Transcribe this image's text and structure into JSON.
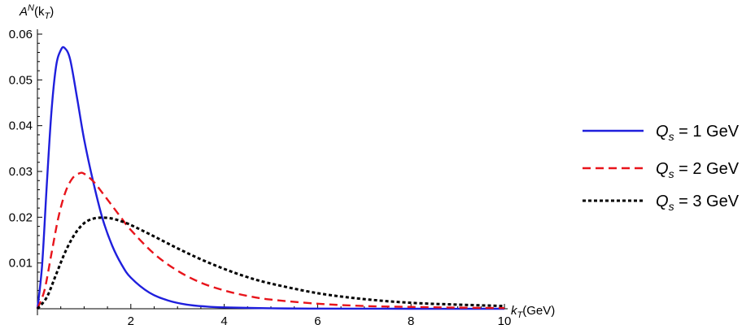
{
  "chart_data": {
    "type": "line",
    "xlabel": {
      "main": "k",
      "sub": "T",
      "suffix": "(GeV)"
    },
    "ylabel": {
      "main": "A",
      "sup": "N",
      "open": "(k",
      "sub": "T",
      "close": ")"
    },
    "xlim": [
      0,
      10
    ],
    "ylim": [
      0,
      0.06
    ],
    "xticks": [
      2,
      4,
      6,
      8,
      10
    ],
    "yticks": [
      0.01,
      0.02,
      0.03,
      0.04,
      0.05,
      0.06
    ],
    "ytick_labels": [
      "0.01",
      "0.02",
      "0.03",
      "0.04",
      "0.05",
      "0.06"
    ],
    "grid": false,
    "legend_position": "right",
    "series": [
      {
        "name": "Q_s = 1 GeV",
        "legend": {
          "main": "Q",
          "sub": "s",
          "rest": " = 1 GeV"
        },
        "color": "#1f1fdd",
        "style": "solid",
        "x": [
          0,
          0.1,
          0.2,
          0.3,
          0.4,
          0.5,
          0.58,
          0.7,
          0.85,
          1.0,
          1.2,
          1.4,
          1.6,
          1.8,
          2.0,
          2.4,
          2.8,
          3.2,
          3.6,
          4.0,
          5.0,
          6.0,
          8.0,
          10.0
        ],
        "y": [
          0,
          0.0095,
          0.027,
          0.043,
          0.053,
          0.0565,
          0.057,
          0.0545,
          0.046,
          0.037,
          0.0275,
          0.0195,
          0.0138,
          0.0097,
          0.0068,
          0.0035,
          0.0018,
          0.0009,
          0.0005,
          0.0003,
          0.0001,
          3e-05,
          0.0,
          0.0
        ]
      },
      {
        "name": "Q_s = 2 GeV",
        "legend": {
          "main": "Q",
          "sub": "s",
          "rest": " = 2 GeV"
        },
        "color": "#e8141b",
        "style": "dashed",
        "x": [
          0,
          0.15,
          0.3,
          0.45,
          0.6,
          0.75,
          0.9,
          1.0,
          1.2,
          1.4,
          1.6,
          1.8,
          2.0,
          2.5,
          3.0,
          3.5,
          4.0,
          4.5,
          5.0,
          6.0,
          7.0,
          8.0,
          9.0,
          10.0
        ],
        "y": [
          0,
          0.004,
          0.012,
          0.02,
          0.0255,
          0.0285,
          0.0296,
          0.0295,
          0.0278,
          0.0252,
          0.0225,
          0.0198,
          0.0172,
          0.012,
          0.0083,
          0.0057,
          0.004,
          0.0028,
          0.002,
          0.0011,
          0.0006,
          0.0004,
          0.00025,
          0.00015
        ]
      },
      {
        "name": "Q_s = 3 GeV",
        "legend": {
          "main": "Q",
          "sub": "s",
          "rest": " = 3 GeV"
        },
        "color": "#000000",
        "style": "dotted",
        "x": [
          0,
          0.2,
          0.4,
          0.6,
          0.8,
          1.0,
          1.2,
          1.4,
          1.6,
          1.8,
          2.0,
          2.5,
          3.0,
          3.5,
          4.0,
          4.5,
          5.0,
          6.0,
          7.0,
          8.0,
          9.0,
          10.0
        ],
        "y": [
          0,
          0.0025,
          0.0075,
          0.0125,
          0.0163,
          0.0187,
          0.0197,
          0.0199,
          0.0197,
          0.0191,
          0.0183,
          0.0158,
          0.0132,
          0.0108,
          0.0087,
          0.0069,
          0.0055,
          0.0034,
          0.0021,
          0.0013,
          0.0009,
          0.0006
        ]
      }
    ]
  }
}
